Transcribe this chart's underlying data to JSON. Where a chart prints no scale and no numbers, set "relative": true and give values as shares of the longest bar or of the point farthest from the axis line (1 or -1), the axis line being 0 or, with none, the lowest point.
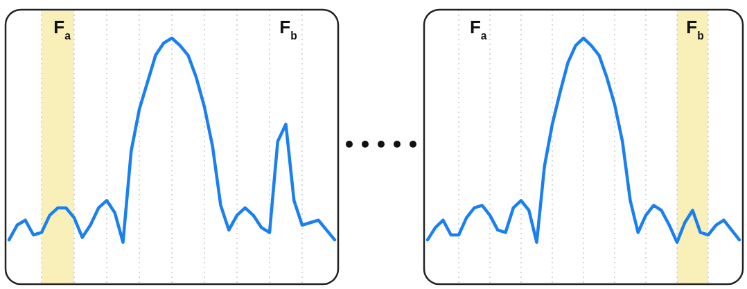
{
  "chart_data": [
    {
      "type": "line",
      "relative": true,
      "categories": [
        null,
        null,
        null,
        null,
        null,
        null,
        null,
        null,
        null,
        null,
        null,
        null,
        null,
        null,
        null,
        null,
        null,
        null,
        null,
        null,
        null,
        null,
        null,
        null,
        null,
        null,
        null,
        null,
        null,
        null,
        null,
        null,
        null,
        null,
        null,
        null,
        null,
        null,
        null,
        null,
        null
      ],
      "grid": "x",
      "line_style": "solid",
      "series": [
        {
          "color": "#1a7ff0",
          "values": [
            0.18,
            0.24,
            0.26,
            0.2,
            0.21,
            0.28,
            0.31,
            0.31,
            0.27,
            0.19,
            0.24,
            0.31,
            0.34,
            0.29,
            0.17,
            0.54,
            0.71,
            0.82,
            0.93,
            0.98,
            1,
            0.97,
            0.93,
            0.84,
            0.72,
            0.56,
            0.32,
            0.22,
            0.28,
            0.31,
            0.28,
            0.23,
            0.21,
            0.58,
            0.65,
            0.34,
            0.24,
            0.25,
            0.26,
            0.22,
            0.18
          ]
        }
      ],
      "annotations": [
        "F$_{a}$",
        "F$_{b}$"
      ]
    },
    {
      "type": "line",
      "relative": true,
      "categories": [
        null,
        null,
        null,
        null,
        null,
        null,
        null,
        null,
        null,
        null,
        null,
        null,
        null,
        null,
        null,
        null,
        null,
        null,
        null,
        null,
        null,
        null,
        null,
        null,
        null,
        null,
        null,
        null,
        null,
        null,
        null,
        null,
        null,
        null,
        null,
        null,
        null,
        null,
        null,
        null,
        null
      ],
      "grid": "x",
      "line_style": "solid",
      "series": [
        {
          "color": "#1a7ff0",
          "values": [
            0.18,
            0.23,
            0.26,
            0.2,
            0.2,
            0.27,
            0.31,
            0.32,
            0.28,
            0.22,
            0.21,
            0.31,
            0.34,
            0.3,
            0.17,
            0.48,
            0.65,
            0.78,
            0.9,
            0.97,
            1,
            0.97,
            0.93,
            0.84,
            0.73,
            0.58,
            0.34,
            0.21,
            0.28,
            0.32,
            0.3,
            0.24,
            0.17,
            0.25,
            0.3,
            0.21,
            0.2,
            0.24,
            0.26,
            0.22,
            0.18
          ]
        }
      ],
      "annotations": [
        "F$_{a}$",
        "F$_{b}$"
      ]
    }
  ]
}
